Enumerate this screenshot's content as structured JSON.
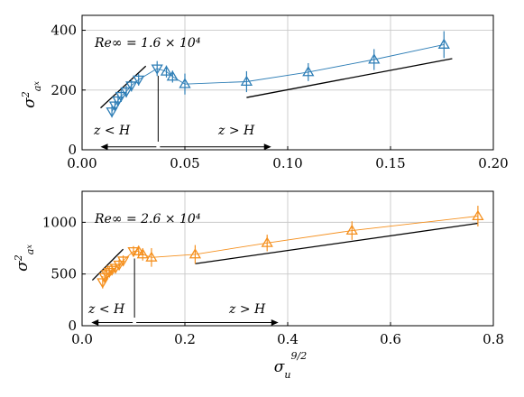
{
  "colors": {
    "series_top": "#2e7eb6",
    "series_bottom": "#f5901e",
    "trend": "#000000",
    "grid": "#c8c8c8"
  },
  "chart_data": [
    {
      "type": "scatter",
      "ylabel": "σ²_{a_x}",
      "xlabel": "",
      "xlim": [
        0,
        0.2
      ],
      "ylim": [
        0,
        450
      ],
      "xticks": [
        0,
        0.05,
        0.1,
        0.15,
        0.2
      ],
      "xtick_labels": [
        "0.00",
        "0.05",
        "0.10",
        "0.15",
        "0.20"
      ],
      "yticks": [
        0,
        200,
        400
      ],
      "ytick_labels": [
        "0",
        "200",
        "400"
      ],
      "grid": true,
      "annotation_re": "Re∞ = 1.6 × 10⁴",
      "left_region_label": "z < H",
      "right_region_label": "z > H",
      "split_x": 0.037,
      "arrow_y": 10,
      "arrow_left_x": 0.009,
      "arrow_right_x": 0.092,
      "series": [
        {
          "marker": "triangle-down",
          "x": [
            0.0145,
            0.016,
            0.0175,
            0.019,
            0.0215,
            0.024,
            0.0275,
            0.0365
          ],
          "y": [
            128,
            148,
            165,
            180,
            195,
            215,
            235,
            272
          ],
          "err": [
            20,
            20,
            20,
            20,
            20,
            20,
            20,
            25
          ]
        },
        {
          "marker": "triangle-up",
          "x": [
            0.041,
            0.044,
            0.05,
            0.08,
            0.11,
            0.142,
            0.176
          ],
          "y": [
            262,
            245,
            220,
            228,
            260,
            302,
            352
          ],
          "err": [
            20,
            20,
            35,
            35,
            30,
            35,
            45
          ]
        }
      ],
      "trend_lines": [
        {
          "x": [
            0.009,
            0.031
          ],
          "y": [
            140,
            280
          ]
        },
        {
          "x": [
            0.08,
            0.18
          ],
          "y": [
            175,
            305
          ]
        }
      ]
    },
    {
      "type": "scatter",
      "ylabel": "σ²_{a_x}",
      "xlabel": "σ_u^{9/2}",
      "xlim": [
        0,
        0.8
      ],
      "ylim": [
        0,
        1300
      ],
      "xticks": [
        0,
        0.2,
        0.4,
        0.6,
        0.8
      ],
      "xtick_labels": [
        "0.0",
        "0.2",
        "0.4",
        "0.6",
        "0.8"
      ],
      "yticks": [
        0,
        500,
        1000
      ],
      "ytick_labels": [
        "0",
        "500",
        "1000"
      ],
      "grid": true,
      "annotation_re": "Re∞ = 2.6 × 10⁴",
      "left_region_label": "z < H",
      "right_region_label": "z > H",
      "split_x": 0.102,
      "arrow_y": 30,
      "arrow_left_x": 0.018,
      "arrow_right_x": 0.382,
      "series": [
        {
          "marker": "triangle-down",
          "x": [
            0.04,
            0.044,
            0.048,
            0.053,
            0.058,
            0.065,
            0.072,
            0.08,
            0.1
          ],
          "y": [
            420,
            470,
            500,
            520,
            540,
            560,
            590,
            630,
            720
          ],
          "err": [
            60,
            60,
            50,
            50,
            50,
            50,
            50,
            50,
            50
          ]
        },
        {
          "marker": "triangle-up",
          "x": [
            0.11,
            0.118,
            0.135,
            0.22,
            0.36,
            0.525,
            0.77
          ],
          "y": [
            720,
            690,
            660,
            690,
            800,
            920,
            1060
          ],
          "err": [
            50,
            60,
            90,
            90,
            80,
            90,
            100
          ]
        }
      ],
      "trend_lines": [
        {
          "x": [
            0.02,
            0.08
          ],
          "y": [
            440,
            740
          ]
        },
        {
          "x": [
            0.22,
            0.77
          ],
          "y": [
            600,
            990
          ]
        }
      ]
    }
  ]
}
